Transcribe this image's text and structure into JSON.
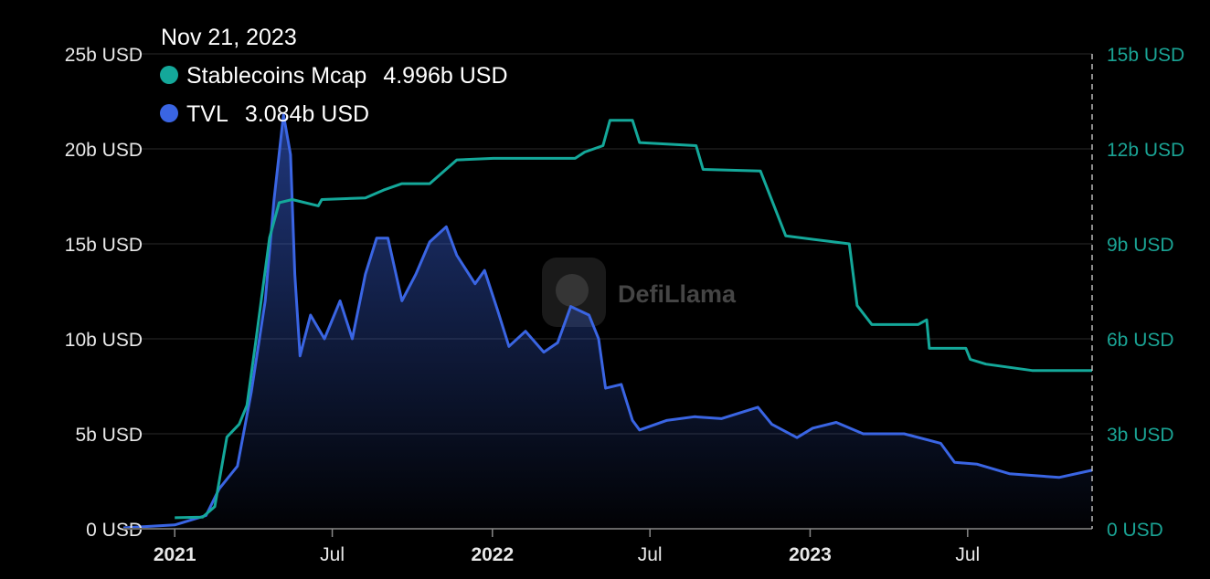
{
  "chart_data": {
    "type": "line",
    "tooltip": {
      "date": "Nov 21, 2023"
    },
    "watermark": "DefiLlama",
    "grid": true,
    "legend_placement": "top-left",
    "x_range": [
      "2020-11-03",
      "2023-11-21"
    ],
    "x_ticks": [
      {
        "date": "2021-01-01",
        "label": "2021",
        "year": true
      },
      {
        "date": "2021-07-01",
        "label": "Jul",
        "year": false
      },
      {
        "date": "2022-01-01",
        "label": "2022",
        "year": true
      },
      {
        "date": "2022-07-01",
        "label": "Jul",
        "year": false
      },
      {
        "date": "2023-01-01",
        "label": "2023",
        "year": true
      },
      {
        "date": "2023-07-01",
        "label": "Jul",
        "year": false
      }
    ],
    "y_left": {
      "range": [
        0,
        25
      ],
      "unit": "b USD",
      "ticks": [
        0,
        5,
        10,
        15,
        20,
        25
      ],
      "labels": [
        "0 USD",
        "5b USD",
        "10b USD",
        "15b USD",
        "20b USD",
        "25b USD"
      ]
    },
    "y_right": {
      "range": [
        0,
        15
      ],
      "unit": "b USD",
      "ticks": [
        0,
        3,
        6,
        9,
        12,
        15
      ],
      "labels": [
        "0 USD",
        "3b USD",
        "6b USD",
        "9b USD",
        "12b USD",
        "15b USD"
      ]
    },
    "series": [
      {
        "name": "Stablecoins Mcap",
        "value_label": "4.996b USD",
        "axis": "right",
        "color": "#14a89a",
        "fill": false,
        "points": [
          [
            "2021-01-01",
            0.35
          ],
          [
            "2021-02-02",
            0.37
          ],
          [
            "2021-02-16",
            0.7
          ],
          [
            "2021-03-02",
            2.9
          ],
          [
            "2021-03-16",
            3.3
          ],
          [
            "2021-03-25",
            3.9
          ],
          [
            "2021-04-04",
            5.9
          ],
          [
            "2021-04-20",
            9.2
          ],
          [
            "2021-05-01",
            10.3
          ],
          [
            "2021-05-16",
            10.4
          ],
          [
            "2021-06-15",
            10.2
          ],
          [
            "2021-06-19",
            10.4
          ],
          [
            "2021-08-08",
            10.45
          ],
          [
            "2021-08-29",
            10.7
          ],
          [
            "2021-09-19",
            10.9
          ],
          [
            "2021-10-21",
            10.9
          ],
          [
            "2021-11-21",
            11.65
          ],
          [
            "2022-01-02",
            11.7
          ],
          [
            "2022-04-06",
            11.7
          ],
          [
            "2022-04-17",
            11.9
          ],
          [
            "2022-05-08",
            12.1
          ],
          [
            "2022-05-16",
            12.9
          ],
          [
            "2022-06-11",
            12.9
          ],
          [
            "2022-06-19",
            12.2
          ],
          [
            "2022-08-23",
            12.1
          ],
          [
            "2022-08-31",
            11.35
          ],
          [
            "2022-11-05",
            11.3
          ],
          [
            "2022-12-04",
            9.25
          ],
          [
            "2023-02-15",
            9.0
          ],
          [
            "2023-02-24",
            7.05
          ],
          [
            "2023-03-13",
            6.45
          ],
          [
            "2023-05-05",
            6.45
          ],
          [
            "2023-05-15",
            6.6
          ],
          [
            "2023-05-18",
            5.7
          ],
          [
            "2023-06-29",
            5.7
          ],
          [
            "2023-07-04",
            5.35
          ],
          [
            "2023-07-22",
            5.2
          ],
          [
            "2023-09-13",
            5.0
          ],
          [
            "2023-11-21",
            4.996
          ]
        ]
      },
      {
        "name": "TVL",
        "value_label": "3.084b USD",
        "axis": "left",
        "color": "#3a65e3",
        "fill": true,
        "points": [
          [
            "2020-11-03",
            0.05
          ],
          [
            "2021-01-01",
            0.2
          ],
          [
            "2021-02-06",
            0.7
          ],
          [
            "2021-02-21",
            2.1
          ],
          [
            "2021-03-14",
            3.3
          ],
          [
            "2021-03-30",
            7.2
          ],
          [
            "2021-04-15",
            12.0
          ],
          [
            "2021-04-25",
            17.3
          ],
          [
            "2021-05-06",
            21.8
          ],
          [
            "2021-05-14",
            19.7
          ],
          [
            "2021-05-19",
            13.4
          ],
          [
            "2021-05-25",
            9.1
          ],
          [
            "2021-06-06",
            11.25
          ],
          [
            "2021-06-22",
            10.0
          ],
          [
            "2021-07-10",
            12.0
          ],
          [
            "2021-07-24",
            10.0
          ],
          [
            "2021-08-08",
            13.4
          ],
          [
            "2021-08-21",
            15.3
          ],
          [
            "2021-09-03",
            15.3
          ],
          [
            "2021-09-19",
            12.0
          ],
          [
            "2021-10-05",
            13.4
          ],
          [
            "2021-10-21",
            15.1
          ],
          [
            "2021-11-09",
            15.9
          ],
          [
            "2021-11-21",
            14.4
          ],
          [
            "2021-12-12",
            12.9
          ],
          [
            "2021-12-23",
            13.6
          ],
          [
            "2022-01-07",
            11.5
          ],
          [
            "2022-01-20",
            9.6
          ],
          [
            "2022-02-08",
            10.4
          ],
          [
            "2022-03-01",
            9.3
          ],
          [
            "2022-03-17",
            9.8
          ],
          [
            "2022-04-01",
            11.7
          ],
          [
            "2022-04-22",
            11.25
          ],
          [
            "2022-05-03",
            10.0
          ],
          [
            "2022-05-11",
            7.4
          ],
          [
            "2022-05-29",
            7.6
          ],
          [
            "2022-06-11",
            5.7
          ],
          [
            "2022-06-19",
            5.2
          ],
          [
            "2022-07-20",
            5.7
          ],
          [
            "2022-08-21",
            5.9
          ],
          [
            "2022-09-21",
            5.8
          ],
          [
            "2022-11-02",
            6.4
          ],
          [
            "2022-11-18",
            5.5
          ],
          [
            "2022-12-17",
            4.8
          ],
          [
            "2023-01-04",
            5.3
          ],
          [
            "2023-01-31",
            5.6
          ],
          [
            "2023-03-03",
            5.0
          ],
          [
            "2023-04-19",
            5.0
          ],
          [
            "2023-05-31",
            4.5
          ],
          [
            "2023-06-16",
            3.5
          ],
          [
            "2023-07-12",
            3.4
          ],
          [
            "2023-08-18",
            2.9
          ],
          [
            "2023-10-14",
            2.7
          ],
          [
            "2023-11-21",
            3.084
          ]
        ]
      }
    ]
  }
}
